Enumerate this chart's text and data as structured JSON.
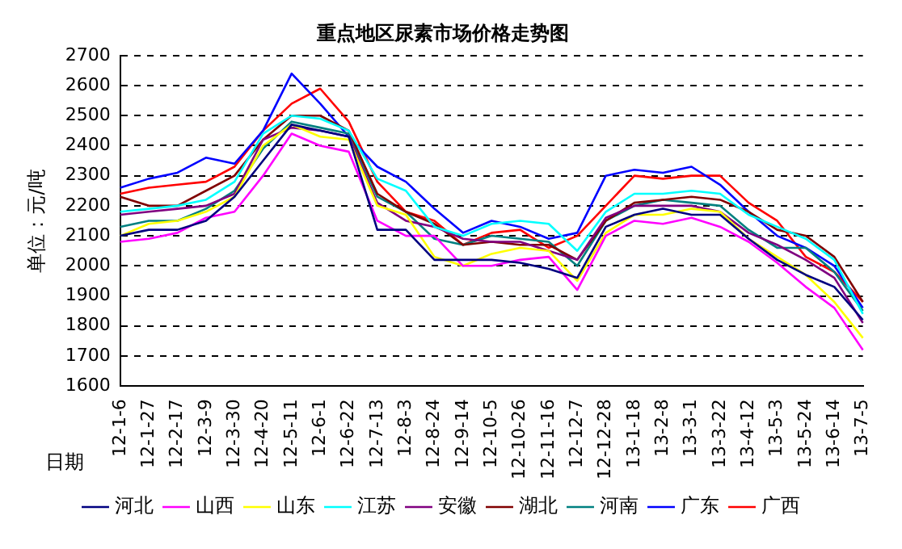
{
  "chart_data": {
    "type": "line",
    "title": "重点地区尿素市场价格走势图",
    "ylabel": "单位：元/吨",
    "xlabel": "日期",
    "categories": [
      "12-1-6",
      "12-1-27",
      "12-2-17",
      "12-3-9",
      "12-3-30",
      "12-4-20",
      "12-5-11",
      "12-6-1",
      "12-6-22",
      "12-7-13",
      "12-8-3",
      "12-8-24",
      "12-9-14",
      "12-10-5",
      "12-10-26",
      "12-11-16",
      "12-12-7",
      "12-12-28",
      "13-1-18",
      "13-2-8",
      "13-3-1",
      "13-3-22",
      "13-4-12",
      "13-5-3",
      "13-5-24",
      "13-6-14",
      "13-7-5"
    ],
    "ylim": [
      1600,
      2700
    ],
    "yticks": [
      1600,
      1700,
      1800,
      1900,
      2000,
      2100,
      2200,
      2300,
      2400,
      2500,
      2600,
      2700
    ],
    "grid": "y",
    "legend": "bottom",
    "marker": "none",
    "line_style": "solid",
    "series": [
      {
        "name": "河北",
        "color": "#000080",
        "values": [
          2100,
          2120,
          2120,
          2150,
          2230,
          2350,
          2470,
          2450,
          2430,
          2120,
          2120,
          2020,
          2020,
          2020,
          2010,
          1990,
          1960,
          2130,
          2170,
          2190,
          2170,
          2170,
          2090,
          2020,
          1970,
          1930,
          1820
        ]
      },
      {
        "name": "山西",
        "color": "#ff00ff",
        "values": [
          2080,
          2090,
          2110,
          2160,
          2180,
          2300,
          2440,
          2400,
          2380,
          2150,
          2100,
          2100,
          2000,
          2000,
          2020,
          2030,
          1920,
          2100,
          2150,
          2140,
          2160,
          2130,
          2080,
          2010,
          1930,
          1860,
          1720
        ]
      },
      {
        "name": "山东",
        "color": "#ffff00",
        "values": [
          2100,
          2140,
          2150,
          2180,
          2230,
          2400,
          2470,
          2430,
          2420,
          2200,
          2170,
          2030,
          2000,
          2040,
          2060,
          2050,
          1950,
          2110,
          2170,
          2170,
          2190,
          2180,
          2090,
          2030,
          1970,
          1880,
          1760
        ]
      },
      {
        "name": "江苏",
        "color": "#00ffff",
        "values": [
          2180,
          2190,
          2200,
          2220,
          2280,
          2440,
          2500,
          2490,
          2450,
          2290,
          2250,
          2130,
          2100,
          2140,
          2150,
          2140,
          2050,
          2180,
          2240,
          2240,
          2250,
          2240,
          2170,
          2130,
          2090,
          2020,
          1840
        ]
      },
      {
        "name": "安徽",
        "color": "#800080",
        "values": [
          2170,
          2180,
          2190,
          2200,
          2240,
          2420,
          2460,
          2450,
          2430,
          2210,
          2150,
          2130,
          2090,
          2080,
          2080,
          2050,
          2020,
          2160,
          2200,
          2200,
          2200,
          2180,
          2110,
          2070,
          2020,
          1960,
          1810
        ]
      },
      {
        "name": "湖北",
        "color": "#800000",
        "values": [
          2230,
          2200,
          2200,
          2250,
          2300,
          2420,
          2500,
          2500,
          2450,
          2240,
          2180,
          2140,
          2070,
          2080,
          2070,
          2070,
          2020,
          2150,
          2210,
          2220,
          2230,
          2220,
          2180,
          2120,
          2100,
          2030,
          1880
        ]
      },
      {
        "name": "河南",
        "color": "#008080",
        "values": [
          2130,
          2150,
          2150,
          2190,
          2250,
          2390,
          2480,
          2460,
          2440,
          2230,
          2180,
          2090,
          2070,
          2100,
          2090,
          2080,
          2000,
          2150,
          2200,
          2220,
          2210,
          2200,
          2120,
          2060,
          2060,
          1980,
          1850
        ]
      },
      {
        "name": "广东",
        "color": "#0000ff",
        "values": [
          2260,
          2290,
          2310,
          2360,
          2340,
          2450,
          2640,
          2540,
          2430,
          2330,
          2280,
          2190,
          2110,
          2150,
          2130,
          2090,
          2110,
          2300,
          2320,
          2310,
          2330,
          2270,
          2180,
          2100,
          2060,
          2000,
          1860
        ]
      },
      {
        "name": "广西",
        "color": "#ff0000",
        "values": [
          2240,
          2260,
          2270,
          2280,
          2330,
          2450,
          2540,
          2590,
          2480,
          2280,
          2180,
          2150,
          2070,
          2110,
          2120,
          2060,
          2100,
          2200,
          2300,
          2290,
          2300,
          2300,
          2210,
          2150,
          2030,
          1980,
          1880
        ]
      }
    ]
  }
}
